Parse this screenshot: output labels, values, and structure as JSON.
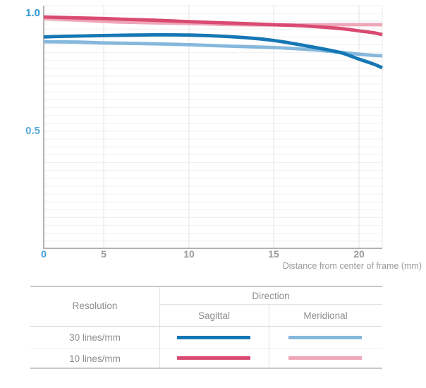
{
  "chart_data": {
    "type": "line",
    "title": "",
    "xlabel": "Distance from center of frame (mm)",
    "ylabel": "",
    "xlim": [
      0,
      21.6
    ],
    "ylim": [
      0,
      1.03
    ],
    "grid": true,
    "legend_position": "bottom-table",
    "xticks": [
      {
        "label": "0",
        "value": 0,
        "highlight": true
      },
      {
        "label": "5",
        "value": 5,
        "highlight": false
      },
      {
        "label": "10",
        "value": 10,
        "highlight": false
      },
      {
        "label": "15",
        "value": 15,
        "highlight": false
      },
      {
        "label": "20",
        "value": 20,
        "highlight": false
      }
    ],
    "yticks": [
      {
        "label": "1.0",
        "value": 1.0,
        "color": "#2d97d2"
      },
      {
        "label": "0.5",
        "value": 0.5,
        "color": "#5ba8d9"
      }
    ],
    "series": [
      {
        "name": "30 lines/mm Sagittal",
        "color": "#1577b5",
        "points": [
          [
            0,
            0.9
          ],
          [
            2,
            0.903
          ],
          [
            5,
            0.906
          ],
          [
            8,
            0.909
          ],
          [
            10,
            0.908
          ],
          [
            12,
            0.903
          ],
          [
            14,
            0.893
          ],
          [
            15,
            0.885
          ],
          [
            16,
            0.874
          ],
          [
            17,
            0.861
          ],
          [
            18,
            0.848
          ],
          [
            19,
            0.832
          ],
          [
            20,
            0.806
          ],
          [
            21,
            0.785
          ],
          [
            21.6,
            0.769
          ]
        ]
      },
      {
        "name": "30 lines/mm Meridional",
        "color": "#85b8dc",
        "points": [
          [
            0,
            0.88
          ],
          [
            3,
            0.878
          ],
          [
            5,
            0.875
          ],
          [
            8,
            0.871
          ],
          [
            10,
            0.867
          ],
          [
            12,
            0.862
          ],
          [
            15,
            0.855
          ],
          [
            17,
            0.847
          ],
          [
            18,
            0.841
          ],
          [
            19,
            0.834
          ],
          [
            20,
            0.827
          ],
          [
            21,
            0.822
          ],
          [
            21.6,
            0.82
          ]
        ]
      },
      {
        "name": "10 lines/mm Sagittal",
        "color": "#d94a71",
        "points": [
          [
            0,
            0.985
          ],
          [
            2,
            0.982
          ],
          [
            5,
            0.978
          ],
          [
            8,
            0.971
          ],
          [
            10,
            0.965
          ],
          [
            12,
            0.96
          ],
          [
            15,
            0.952
          ],
          [
            17,
            0.946
          ],
          [
            19,
            0.935
          ],
          [
            20,
            0.926
          ],
          [
            21,
            0.918
          ],
          [
            21.6,
            0.91
          ]
        ]
      },
      {
        "name": "10 lines/mm Meridional",
        "color": "#efa6b8",
        "points": [
          [
            0,
            0.978
          ],
          [
            3,
            0.971
          ],
          [
            6,
            0.963
          ],
          [
            10,
            0.957
          ],
          [
            13,
            0.952
          ],
          [
            16,
            0.951
          ],
          [
            19,
            0.952
          ],
          [
            21.6,
            0.952
          ]
        ]
      }
    ]
  },
  "table": {
    "resolution_header": "Resolution",
    "direction_header": "Direction",
    "direction_columns": [
      "Sagittal",
      "Meridional"
    ],
    "rows": [
      {
        "label": "30 lines/mm",
        "sagittal_color": "#1577b5",
        "meridional_color": "#85b8dc"
      },
      {
        "label": "10 lines/mm",
        "sagittal_color": "#d94a71",
        "meridional_color": "#efa6b8"
      }
    ]
  },
  "colors": {
    "axis_line": "#b3b3b3",
    "grid_vertical": "#e3e3e3",
    "grid_horizontal": "#f2efef",
    "plot_right_edge": "#e9e9e9",
    "tick_gray": "#9a9a9a",
    "tick_blue": "#3f9cd4",
    "table_border": "#c9c9c9",
    "table_text": "#8f8f8f"
  }
}
